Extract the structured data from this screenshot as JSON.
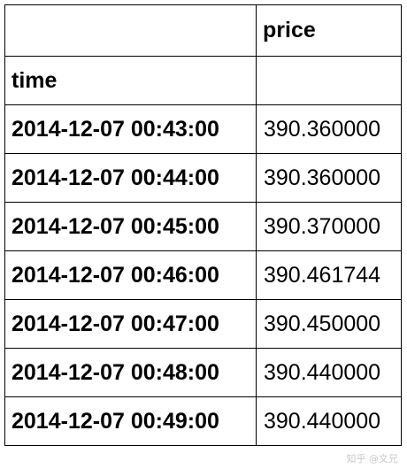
{
  "table": {
    "column_header": "price",
    "index_name": "time",
    "rows": [
      {
        "time": "2014-12-07 00:43:00",
        "price": "390.360000"
      },
      {
        "time": "2014-12-07 00:44:00",
        "price": "390.360000"
      },
      {
        "time": "2014-12-07 00:45:00",
        "price": "390.370000"
      },
      {
        "time": "2014-12-07 00:46:00",
        "price": "390.461744"
      },
      {
        "time": "2014-12-07 00:47:00",
        "price": "390.450000"
      },
      {
        "time": "2014-12-07 00:48:00",
        "price": "390.440000"
      },
      {
        "time": "2014-12-07 00:49:00",
        "price": "390.440000"
      }
    ]
  },
  "watermark": "知乎 @文兄"
}
